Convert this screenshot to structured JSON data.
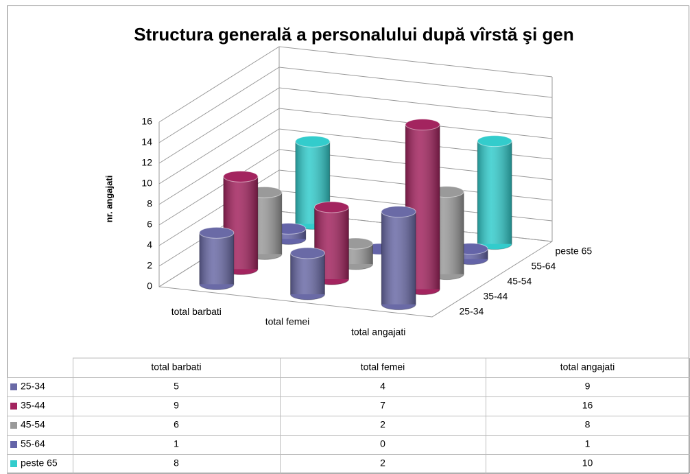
{
  "chart_data": {
    "type": "bar3d",
    "title": "Structura generală a personalului după vîrstă şi gen",
    "y_label": "nr. angajati",
    "categories": [
      "total barbati",
      "total femei",
      "total angajati"
    ],
    "series": [
      {
        "name": "25-34",
        "color": "#6a6aa6",
        "values": [
          5,
          4,
          9
        ]
      },
      {
        "name": "35-44",
        "color": "#a3245f",
        "values": [
          9,
          7,
          16
        ]
      },
      {
        "name": "45-54",
        "color": "#9a9a9a",
        "values": [
          6,
          2,
          8
        ]
      },
      {
        "name": "55-64",
        "color": "#6464a8",
        "values": [
          1,
          0,
          1
        ]
      },
      {
        "name": "peste 65",
        "color": "#33cccc",
        "values": [
          8,
          2,
          10
        ]
      }
    ],
    "ylim": [
      0,
      16
    ],
    "yticks": [
      0,
      2,
      4,
      6,
      8,
      10,
      12,
      14,
      16
    ],
    "grid": true,
    "data_table": true
  }
}
